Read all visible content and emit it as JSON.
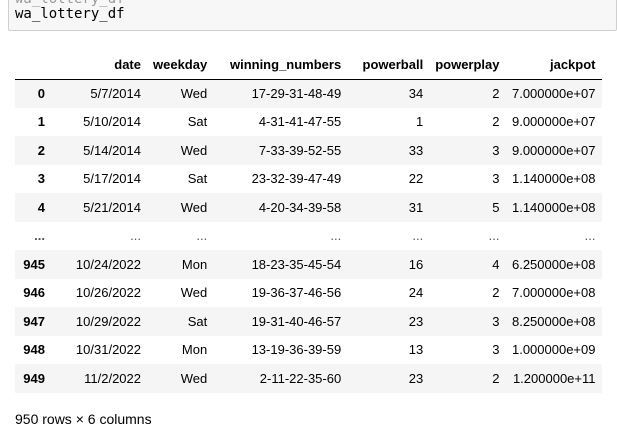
{
  "code_cell": {
    "partial_line": "wa_lottery_df",
    "line": "wa_lottery_df"
  },
  "dataframe": {
    "columns": [
      "date",
      "weekday",
      "winning_numbers",
      "powerball",
      "powerplay",
      "jackpot"
    ],
    "rows": [
      {
        "index": "0",
        "cells": [
          "5/7/2014",
          "Wed",
          "17-29-31-48-49",
          "34",
          "2",
          "7.000000e+07"
        ]
      },
      {
        "index": "1",
        "cells": [
          "5/10/2014",
          "Sat",
          "4-31-41-47-55",
          "1",
          "2",
          "9.000000e+07"
        ]
      },
      {
        "index": "2",
        "cells": [
          "5/14/2014",
          "Wed",
          "7-33-39-52-55",
          "33",
          "3",
          "9.000000e+07"
        ]
      },
      {
        "index": "3",
        "cells": [
          "5/17/2014",
          "Sat",
          "23-32-39-47-49",
          "22",
          "3",
          "1.140000e+08"
        ]
      },
      {
        "index": "4",
        "cells": [
          "5/21/2014",
          "Wed",
          "4-20-34-39-58",
          "31",
          "5",
          "1.140000e+08"
        ]
      },
      {
        "index": "...",
        "cells": [
          "...",
          "...",
          "...",
          "...",
          "...",
          "..."
        ]
      },
      {
        "index": "945",
        "cells": [
          "10/24/2022",
          "Mon",
          "18-23-35-45-54",
          "16",
          "4",
          "6.250000e+08"
        ]
      },
      {
        "index": "946",
        "cells": [
          "10/26/2022",
          "Wed",
          "19-36-37-46-56",
          "24",
          "2",
          "7.000000e+08"
        ]
      },
      {
        "index": "947",
        "cells": [
          "10/29/2022",
          "Sat",
          "19-31-40-46-57",
          "23",
          "3",
          "8.250000e+08"
        ]
      },
      {
        "index": "948",
        "cells": [
          "10/31/2022",
          "Mon",
          "13-19-36-39-59",
          "13",
          "3",
          "1.000000e+09"
        ]
      },
      {
        "index": "949",
        "cells": [
          "11/2/2022",
          "Wed",
          "2-11-22-35-60",
          "23",
          "2",
          "1.200000e+11"
        ]
      }
    ],
    "summary": "950 rows × 6 columns"
  }
}
